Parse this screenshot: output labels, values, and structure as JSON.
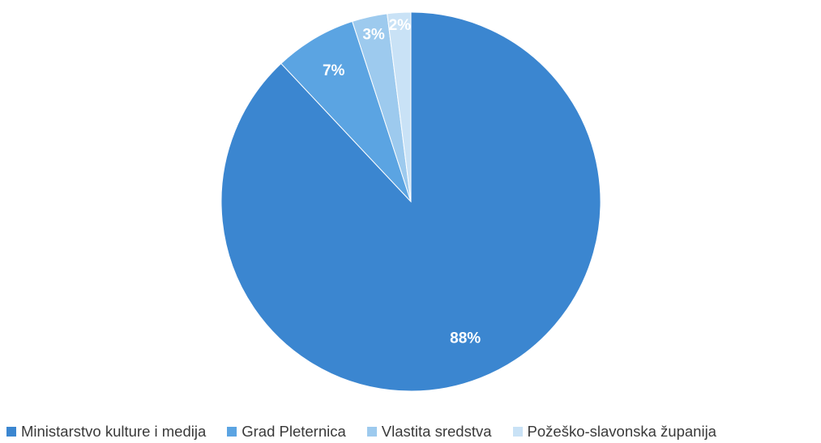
{
  "chart_data": {
    "type": "pie",
    "categories": [
      "Ministarstvo kulture i medija",
      "Grad Pleternica",
      "Vlastita sredstva",
      "Požeško-slavonska županija"
    ],
    "values": [
      88,
      7,
      3,
      2
    ],
    "data_labels": [
      "88%",
      "7%",
      "3%",
      "2%"
    ],
    "colors": [
      "#3b86d0",
      "#5ba4e2",
      "#9dcaee",
      "#c9e2f6"
    ],
    "legend_position": "bottom",
    "start_angle": "12 o'clock",
    "direction": "clockwise"
  }
}
